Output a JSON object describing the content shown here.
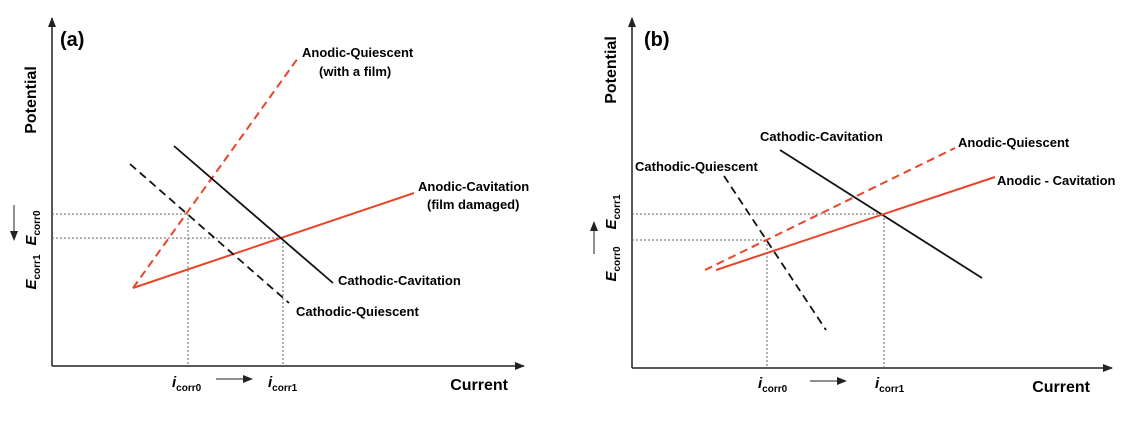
{
  "colors": {
    "anodic": "#e8462a",
    "cathodic": "#111111",
    "axis": "#222222",
    "guide": "#666666"
  },
  "panels": [
    {
      "id": "a",
      "label": "(a)",
      "y_axis_label": "Potential",
      "x_axis_label": "Current",
      "lines": [
        {
          "label_line1": "Anodic-Quiescent",
          "label_line2": "(with a film)",
          "kind": "anodic",
          "style": "dashed"
        },
        {
          "label_line1": "Anodic-Cavitation",
          "label_line2": "(film damaged)",
          "kind": "anodic",
          "style": "solid"
        },
        {
          "label_line1": "Cathodic-Cavitation",
          "label_line2": "",
          "kind": "cathodic",
          "style": "solid"
        },
        {
          "label_line1": "Cathodic-Quiescent",
          "label_line2": "",
          "kind": "cathodic",
          "style": "dashed"
        }
      ],
      "x_markers": [
        {
          "symbol": "i",
          "subscript": "corr0"
        },
        {
          "symbol": "i",
          "subscript": "corr1"
        }
      ],
      "y_markers": [
        {
          "symbol": "E",
          "subscript": "corr0"
        },
        {
          "symbol": "E",
          "subscript": "corr1"
        }
      ],
      "y_arrow_direction": "down",
      "x_arrow_direction": "right"
    },
    {
      "id": "b",
      "label": "(b)",
      "y_axis_label": "Potential",
      "x_axis_label": "Current",
      "lines": [
        {
          "label_line1": "Cathodic-Cavitation",
          "label_line2": "",
          "kind": "cathodic",
          "style": "solid"
        },
        {
          "label_line1": "Anodic-Quiescent",
          "label_line2": "",
          "kind": "anodic",
          "style": "dashed"
        },
        {
          "label_line1": "Cathodic-Quiescent",
          "label_line2": "",
          "kind": "cathodic",
          "style": "dashed"
        },
        {
          "label_line1": "Anodic - Cavitation",
          "label_line2": "",
          "kind": "anodic",
          "style": "solid"
        }
      ],
      "x_markers": [
        {
          "symbol": "i",
          "subscript": "corr0"
        },
        {
          "symbol": "i",
          "subscript": "corr1"
        }
      ],
      "y_markers": [
        {
          "symbol": "E",
          "subscript": "corr0"
        },
        {
          "symbol": "E",
          "subscript": "corr1"
        }
      ],
      "y_arrow_direction": "up",
      "x_arrow_direction": "right"
    }
  ]
}
